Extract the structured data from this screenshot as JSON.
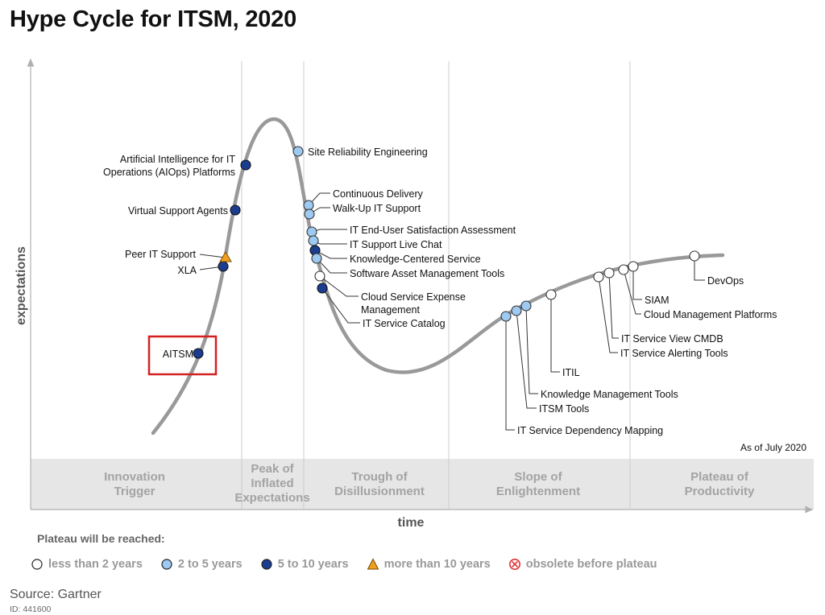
{
  "title": "Hype Cycle for ITSM, 2020",
  "axes": {
    "y_label": "expectations",
    "x_label": "time"
  },
  "as_of": "As of July 2020",
  "phases": [
    {
      "id": "innovation",
      "lines": [
        "Innovation",
        "Trigger"
      ]
    },
    {
      "id": "peak",
      "lines": [
        "Peak of",
        "Inflated",
        "Expectations"
      ]
    },
    {
      "id": "trough",
      "lines": [
        "Trough of",
        "Disillusionment"
      ]
    },
    {
      "id": "slope",
      "lines": [
        "Slope of",
        "Enlightenment"
      ]
    },
    {
      "id": "plateau",
      "lines": [
        "Plateau of",
        "Productivity"
      ]
    }
  ],
  "legend": {
    "title": "Plateau will be reached:",
    "items": [
      {
        "key": "lt2",
        "label": "less than 2 years",
        "color": "#ffffff"
      },
      {
        "key": "2to5",
        "label": "2 to 5 years",
        "color": "#9ec9f0"
      },
      {
        "key": "5to10",
        "label": "5 to 10 years",
        "color": "#1b3d8f"
      },
      {
        "key": "gt10",
        "label": "more than 10 years",
        "color": "#f0a020"
      },
      {
        "key": "obsolete",
        "label": "obsolete before plateau",
        "color": "#e03030"
      }
    ]
  },
  "highlight": {
    "technology": "AITSM",
    "color": "#d42020"
  },
  "technologies": [
    {
      "name": "AITSM",
      "lines": [
        "AITSM"
      ],
      "category": "5to10"
    },
    {
      "name": "XLA",
      "lines": [
        "XLA"
      ],
      "category": "5to10"
    },
    {
      "name": "Peer IT Support",
      "lines": [
        "Peer IT Support"
      ],
      "category": "gt10"
    },
    {
      "name": "Virtual Support Agents",
      "lines": [
        "Virtual Support Agents"
      ],
      "category": "5to10"
    },
    {
      "name": "Artificial Intelligence for IT Operations (AIOps) Platforms",
      "lines": [
        "Artificial Intelligence for IT",
        "Operations (AIOps) Platforms"
      ],
      "category": "5to10"
    },
    {
      "name": "Site Reliability Engineering",
      "lines": [
        "Site Reliability Engineering"
      ],
      "category": "2to5"
    },
    {
      "name": "Continuous Delivery",
      "lines": [
        "Continuous Delivery"
      ],
      "category": "2to5"
    },
    {
      "name": "Walk-Up IT Support",
      "lines": [
        "Walk-Up IT Support"
      ],
      "category": "2to5"
    },
    {
      "name": "IT End-User Satisfaction Assessment",
      "lines": [
        "IT End-User Satisfaction Assessment"
      ],
      "category": "2to5"
    },
    {
      "name": "IT Support Live Chat",
      "lines": [
        "IT Support Live Chat"
      ],
      "category": "2to5"
    },
    {
      "name": "Knowledge-Centered Service",
      "lines": [
        "Knowledge-Centered Service"
      ],
      "category": "5to10"
    },
    {
      "name": "Software Asset Management Tools",
      "lines": [
        "Software Asset Management Tools"
      ],
      "category": "2to5"
    },
    {
      "name": "Cloud Service Expense Management",
      "lines": [
        "Cloud Service Expense",
        "Management"
      ],
      "category": "lt2"
    },
    {
      "name": "IT Service Catalog",
      "lines": [
        "IT Service Catalog"
      ],
      "category": "5to10"
    },
    {
      "name": "IT Service Dependency Mapping",
      "lines": [
        "IT Service Dependency Mapping"
      ],
      "category": "2to5"
    },
    {
      "name": "ITSM Tools",
      "lines": [
        "ITSM Tools"
      ],
      "category": "2to5"
    },
    {
      "name": "Knowledge Management Tools",
      "lines": [
        "Knowledge Management Tools"
      ],
      "category": "2to5"
    },
    {
      "name": "ITIL",
      "lines": [
        "ITIL"
      ],
      "category": "lt2"
    },
    {
      "name": "IT Service Alerting Tools",
      "lines": [
        "IT Service Alerting Tools"
      ],
      "category": "lt2"
    },
    {
      "name": "IT Service View CMDB",
      "lines": [
        "IT Service View CMDB"
      ],
      "category": "lt2"
    },
    {
      "name": "Cloud Management Platforms",
      "lines": [
        "Cloud Management Platforms"
      ],
      "category": "lt2"
    },
    {
      "name": "SIAM",
      "lines": [
        "SIAM"
      ],
      "category": "lt2"
    },
    {
      "name": "DevOps",
      "lines": [
        "DevOps"
      ],
      "category": "lt2"
    }
  ],
  "source": "Source: Gartner",
  "doc_id": "ID: 441600"
}
